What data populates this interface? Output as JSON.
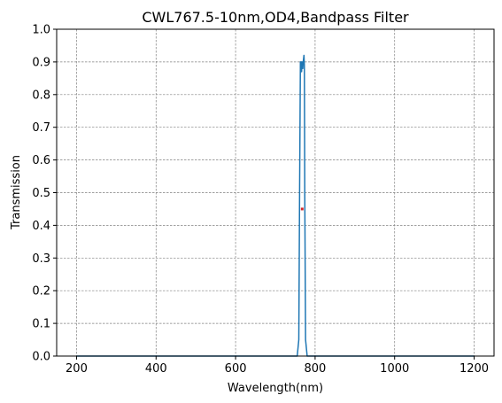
{
  "chart_data": {
    "type": "line",
    "title": "CWL767.5-10nm,OD4,Bandpass Filter",
    "xlabel": "Wavelength(nm)",
    "ylabel": "Transmission",
    "xlim": [
      150,
      1250
    ],
    "ylim": [
      0,
      1.0
    ],
    "xticks": [
      200,
      400,
      600,
      800,
      1000,
      1200
    ],
    "xtick_labels": [
      "200",
      "400",
      "600",
      "800",
      "1000",
      "1200"
    ],
    "yticks": [
      0,
      0.1,
      0.2,
      0.3,
      0.4,
      0.5,
      0.6,
      0.7,
      0.8,
      0.9,
      1.0
    ],
    "ytick_labels": [
      "0.0",
      "0.1",
      "0.2",
      "0.3",
      "0.4",
      "0.5",
      "0.6",
      "0.7",
      "0.8",
      "0.9",
      "1.0"
    ],
    "grid": true,
    "series": [
      {
        "color": "#1f77b4",
        "x": [
          200,
          755,
          759,
          761,
          763,
          764,
          765,
          766,
          767,
          768,
          769,
          770,
          771,
          772,
          773,
          774,
          776,
          780,
          1200
        ],
        "y": [
          0.0,
          0.0,
          0.05,
          0.5,
          0.9,
          0.89,
          0.9,
          0.87,
          0.9,
          0.89,
          0.88,
          0.9,
          0.91,
          0.92,
          0.89,
          0.5,
          0.05,
          0.0,
          0.0
        ]
      }
    ],
    "markers": [
      {
        "x": 767.5,
        "y": 0.45,
        "color": "#d62728"
      }
    ]
  }
}
